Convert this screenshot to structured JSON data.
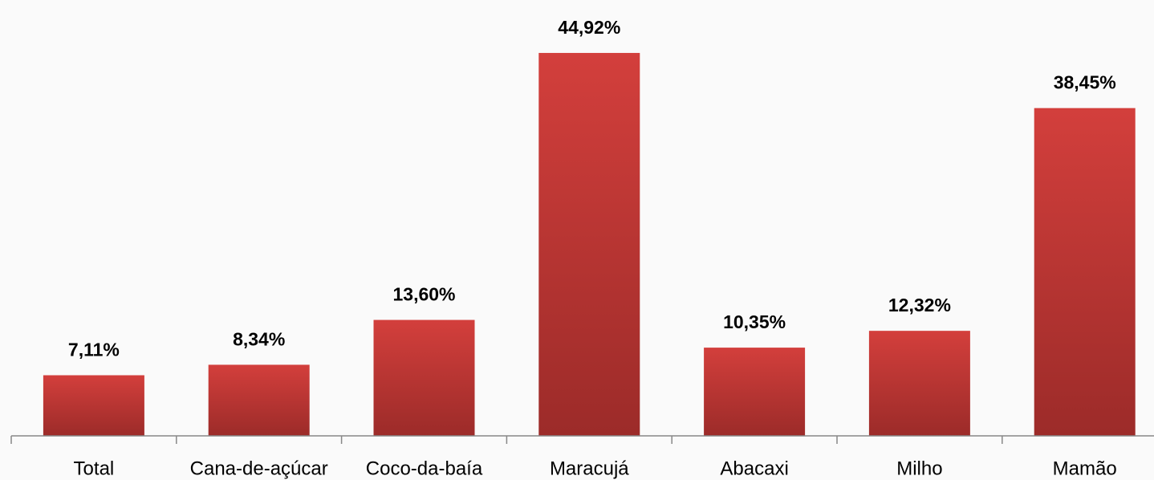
{
  "chart_data": {
    "type": "bar",
    "categories": [
      "Total",
      "Cana-de-açúcar",
      "Coco-da-baía",
      "Maracujá",
      "Abacaxi",
      "Milho",
      "Mamão"
    ],
    "values": [
      7.11,
      8.34,
      13.6,
      44.92,
      10.35,
      12.32,
      38.45
    ],
    "value_labels": [
      "7,11%",
      "8,34%",
      "13,60%",
      "44,92%",
      "10,35%",
      "12,32%",
      "38,45%"
    ],
    "color": "#c93936",
    "ylim": [
      0,
      50
    ]
  }
}
